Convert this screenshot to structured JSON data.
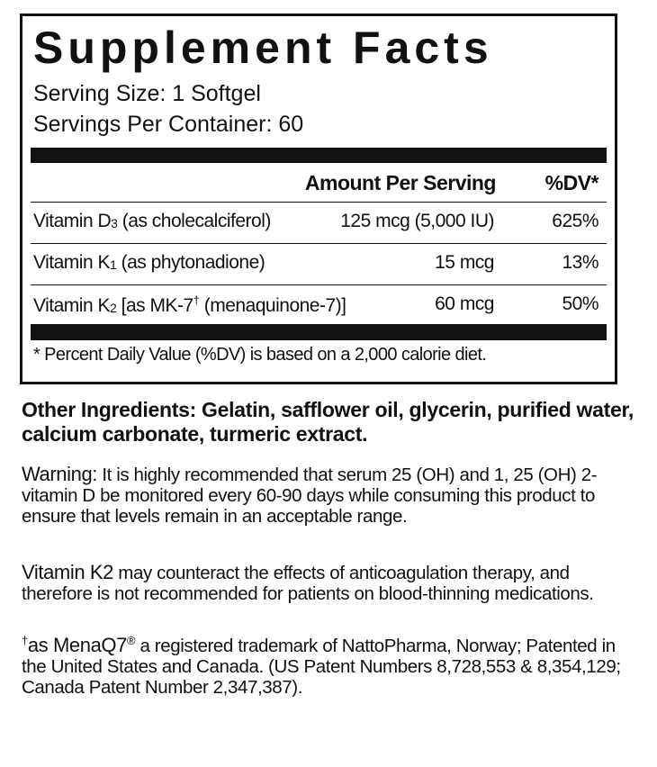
{
  "title": "Supplement Facts",
  "serving_size": "Serving Size: 1 Softgel",
  "servings_per_container": "Servings Per Container: 60",
  "table": {
    "header": [
      "Amount Per Serving",
      "%DV*"
    ],
    "rows": [
      {
        "name": [
          "Vitamin D",
          "3",
          " (as cholecalciferol)"
        ],
        "amount": "125 mcg (5,000 IU)",
        "dv": "625%"
      },
      {
        "name": [
          "Vitamin K",
          "1",
          " (as phytonadione)"
        ],
        "amount": "15 mcg",
        "dv": "13%"
      },
      {
        "name": [
          "Vitamin K",
          "2",
          " [as MK-7",
          "†",
          " (menaquinone-7)]"
        ],
        "amount": "60 mcg",
        "dv": "50%"
      }
    ],
    "footnote": "* Percent Daily Value (%DV) is based on a 2,000 calorie diet."
  },
  "other_ingredients": "Other Ingredients: Gelatin, safflower oil, glycerin, purified water, calcium carbonate, turmeric extract.",
  "warning": {
    "label": "Warning:",
    "text": " It is highly recommended that serum 25 (OH) and 1, 25 (OH) 2-vitamin D be monitored every 60-90 days while consuming this product to ensure that levels remain in an acceptable range."
  },
  "vitamin_k2_note": {
    "label": "Vitamin K2",
    "text": " may counteract the effects of anticoagulation therapy, and therefore is not recommended for patients on blood-thinning medications."
  },
  "trademark": {
    "dagger": "†",
    "name": "as MenaQ7",
    "reg": "®",
    "text": " a registered trademark of NattoPharma, Norway; Patented in the United States and Canada. (US Patent Numbers 8,728,553 & 8,354,129; Canada Patent Number 2,347,387)."
  }
}
